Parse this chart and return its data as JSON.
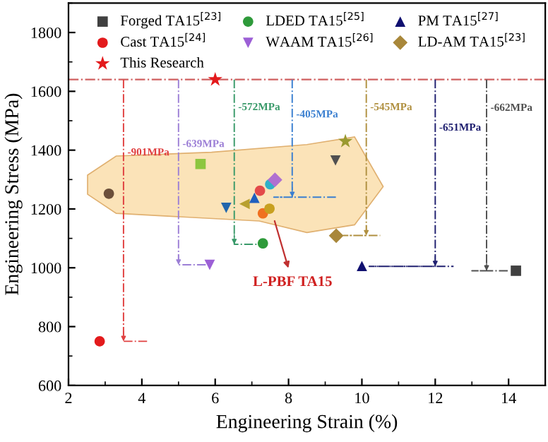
{
  "chart_data": {
    "type": "scatter",
    "xlabel": "Engineering Strain (%)",
    "ylabel": "Engineering Stress (MPa)",
    "xlim": [
      2,
      15
    ],
    "xticks": [
      2,
      4,
      6,
      8,
      10,
      12,
      14
    ],
    "ylim": [
      600,
      1900
    ],
    "yticks": [
      600,
      800,
      1000,
      1200,
      1400,
      1600,
      1800
    ],
    "legend": "top",
    "grid": false,
    "series": [
      {
        "name": "Forged TA15$^{[23]}$",
        "color": "#404040",
        "marker": "square",
        "x": [
          14.2
        ],
        "values": [
          990
        ]
      },
      {
        "name": "Cast TA15$^{[24]}$",
        "color": "#e31a1c",
        "marker": "circle",
        "x": [
          2.85
        ],
        "values": [
          750
        ]
      },
      {
        "name": "This Research",
        "color": "#e31a1c",
        "marker": "star",
        "x": [
          6.0
        ],
        "values": [
          1640
        ]
      },
      {
        "name": "LDED TA15$^{[25]}$",
        "color": "#2e9a3a",
        "marker": "circle",
        "x": [
          7.3
        ],
        "values": [
          1083
        ]
      },
      {
        "name": "WAAM TA15$^{[26]}$",
        "color": "#9c5fd6",
        "marker": "triangle_down",
        "x": [
          5.85
        ],
        "values": [
          1010
        ]
      },
      {
        "name": "PM TA15$^{[27]}$",
        "color": "#101070",
        "marker": "triangle",
        "x": [
          10.0
        ],
        "values": [
          1006
        ]
      },
      {
        "name": "LD-AM TA15$^{[23]}$",
        "color": "#a8873a",
        "marker": "diamond",
        "x": [
          9.3
        ],
        "values": [
          1109
        ]
      },
      {
        "color": "#6b4f3a",
        "marker": "circle",
        "x": [
          3.1
        ],
        "values": [
          1252
        ]
      },
      {
        "color": "#8dc63f",
        "marker": "square",
        "x": [
          5.6
        ],
        "values": [
          1353
        ]
      },
      {
        "color": "#2166ac",
        "marker": "triangle_down",
        "x": [
          6.3
        ],
        "values": [
          1204
        ]
      },
      {
        "color": "#b8a030",
        "marker": "triangle_left",
        "x": [
          6.8
        ],
        "values": [
          1217
        ]
      },
      {
        "color": "#1f5fbf",
        "marker": "triangle",
        "x": [
          7.07
        ],
        "values": [
          1238
        ]
      },
      {
        "color": "#e34a4a",
        "marker": "circle",
        "x": [
          7.22
        ],
        "values": [
          1262
        ]
      },
      {
        "color": "#30b0c8",
        "marker": "circle",
        "x": [
          7.5
        ],
        "values": [
          1284
        ]
      },
      {
        "color": "#b070d0",
        "marker": "diamond",
        "x": [
          7.63
        ],
        "values": [
          1299
        ]
      },
      {
        "color": "#f07020",
        "marker": "circle",
        "x": [
          7.3
        ],
        "values": [
          1185
        ]
      },
      {
        "color": "#c8a020",
        "marker": "circle",
        "x": [
          7.48
        ],
        "values": [
          1201
        ]
      },
      {
        "color": "#505050",
        "marker": "triangle_down",
        "x": [
          9.28
        ],
        "values": [
          1365
        ]
      },
      {
        "color": "#9a9a30",
        "marker": "star",
        "x": [
          9.55
        ],
        "values": [
          1430
        ]
      },
      {
        "type": "line",
        "color": "#e04040",
        "line_style": "dashdot",
        "x": [
          3.5,
          3.5,
          4.2
        ],
        "values": [
          1640,
          750,
          750
        ]
      },
      {
        "type": "line",
        "color": "#9c7fd6",
        "line_style": "dashdot",
        "x": [
          5.0,
          5.0,
          5.8
        ],
        "values": [
          1640,
          1010,
          1010
        ]
      },
      {
        "type": "line",
        "color": "#3a9a6a",
        "line_style": "dashdot",
        "x": [
          6.52,
          6.52,
          7.2
        ],
        "values": [
          1640,
          1080,
          1080
        ]
      },
      {
        "type": "line",
        "color": "#3a7fd0",
        "line_style": "dashdot",
        "x": [
          8.1,
          8.1,
          7.6,
          9.3
        ],
        "values": [
          1640,
          1240,
          1240,
          1240
        ]
      },
      {
        "type": "line",
        "color": "#b09040",
        "line_style": "dashdot",
        "x": [
          10.12,
          10.12,
          9.5,
          10.5
        ],
        "values": [
          1640,
          1110,
          1110,
          1110
        ]
      },
      {
        "type": "line",
        "color": "#202070",
        "line_style": "dashdot",
        "x": [
          12.0,
          12.0,
          10.2,
          12.5
        ],
        "values": [
          1640,
          1005,
          1005,
          1005
        ]
      },
      {
        "type": "line",
        "color": "#505050",
        "line_style": "dashdot",
        "x": [
          13.4,
          13.4,
          13.0,
          14.0
        ],
        "values": [
          1640,
          990,
          990,
          990
        ]
      }
    ],
    "ref_lines": [
      {
        "axis": "y",
        "value": 1640,
        "color": "#d06060",
        "line_style": "dashdot"
      }
    ],
    "annotations": [
      "-901MPa",
      "-639MPa",
      "-572MPa",
      "-405MPa",
      "-545MPa",
      "-651MPa",
      "-662MPa",
      "L-PBF TA15"
    ]
  }
}
